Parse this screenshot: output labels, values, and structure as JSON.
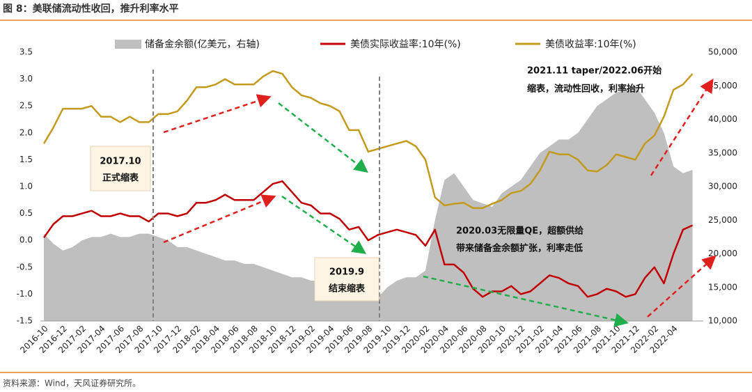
{
  "chart_data": {
    "type": "line",
    "title": "图 8：美联储流动性收回，推升利率水平",
    "source": "资料来源：Wind，天风证券研究所。",
    "categories": [
      "2016-10",
      null,
      "2016-12",
      null,
      "2017-02",
      null,
      "2017-04",
      null,
      "2017-06",
      null,
      "2017-08",
      null,
      "2017-10",
      null,
      "2017-12",
      null,
      "2018-02",
      null,
      "2018-04",
      null,
      "2018-06",
      null,
      "2018-08",
      null,
      "2018-10",
      null,
      "2018-12",
      null,
      "2019-02",
      null,
      "2019-04",
      null,
      "2019-06",
      null,
      "2019-08",
      null,
      "2019-10",
      null,
      "2019-12",
      null,
      "2020-02",
      null,
      "2020-04",
      null,
      "2020-06",
      null,
      "2020-08",
      null,
      "2020-10",
      null,
      "2020-12",
      null,
      "2021-02",
      null,
      "2021-04",
      null,
      "2021-06",
      null,
      "2021-08",
      null,
      "2021-10",
      null,
      "2021-12",
      null,
      "2022-02",
      null,
      "2022-04",
      null,
      null
    ],
    "series": [
      {
        "name": "储备金余额(亿美元，右轴)",
        "color": "#bfbfbf",
        "axis": "y2",
        "kind": "area",
        "values": [
          23000,
          21500,
          20500,
          21000,
          22000,
          22500,
          22500,
          23000,
          22500,
          22500,
          23000,
          23000,
          22500,
          22000,
          21000,
          21000,
          20500,
          20000,
          19500,
          19000,
          19000,
          18500,
          18500,
          18000,
          17500,
          17000,
          16500,
          16500,
          16000,
          16000,
          15500,
          15000,
          15000,
          15000,
          14500,
          13500,
          15000,
          16000,
          16500,
          16500,
          17500,
          25000,
          31000,
          32000,
          30000,
          28000,
          27500,
          27000,
          29000,
          30000,
          31000,
          33000,
          35000,
          36000,
          37000,
          37000,
          38000,
          40000,
          42000,
          43000,
          44000,
          44500,
          45000,
          43000,
          41000,
          38000,
          33000,
          32000,
          32500
        ]
      },
      {
        "name": "美债实际收益率:10年(%)",
        "color": "#c00000",
        "kind": "line",
        "values": [
          0.05,
          0.3,
          0.45,
          0.45,
          0.5,
          0.55,
          0.45,
          0.45,
          0.5,
          0.45,
          0.45,
          0.35,
          0.5,
          0.5,
          0.45,
          0.5,
          0.7,
          0.7,
          0.75,
          0.85,
          0.75,
          0.75,
          0.75,
          0.9,
          1.05,
          1.1,
          0.9,
          0.7,
          0.65,
          0.5,
          0.5,
          0.4,
          0.2,
          0.25,
          0.0,
          0.1,
          0.15,
          0.2,
          0.15,
          0.1,
          -0.1,
          0.2,
          -0.45,
          -0.45,
          -0.6,
          -0.9,
          -1.05,
          -0.95,
          -0.95,
          -0.85,
          -1.0,
          -0.95,
          -0.8,
          -0.65,
          -0.7,
          -0.8,
          -0.85,
          -1.05,
          -1.0,
          -0.9,
          -0.95,
          -1.05,
          -1.0,
          -0.7,
          -0.5,
          -0.8,
          -0.25,
          0.2,
          0.28
        ]
      },
      {
        "name": "美债收益率:10年(%)",
        "color": "#c49a1c",
        "kind": "line",
        "values": [
          1.8,
          2.1,
          2.45,
          2.45,
          2.45,
          2.5,
          2.3,
          2.3,
          2.2,
          2.3,
          2.2,
          2.2,
          2.35,
          2.35,
          2.4,
          2.6,
          2.85,
          2.85,
          2.9,
          3.0,
          2.9,
          2.9,
          2.9,
          3.05,
          3.15,
          3.1,
          2.85,
          2.7,
          2.65,
          2.55,
          2.5,
          2.4,
          2.05,
          2.05,
          1.65,
          1.7,
          1.75,
          1.8,
          1.85,
          1.75,
          1.5,
          0.8,
          0.65,
          0.68,
          0.7,
          0.6,
          0.6,
          0.68,
          0.75,
          0.88,
          0.92,
          1.05,
          1.3,
          1.65,
          1.6,
          1.6,
          1.5,
          1.3,
          1.28,
          1.4,
          1.6,
          1.55,
          1.5,
          1.8,
          1.95,
          2.3,
          2.8,
          2.9,
          3.1
        ]
      }
    ],
    "ylim": [
      -1.5,
      3.5
    ],
    "yticks": [
      -1.5,
      {
        "value": -1.0,
        "label": "-1.0"
      },
      -0.5,
      {
        "value": 0.0,
        "label": "0.0"
      },
      0.5,
      {
        "value": 1.0,
        "label": "1.0"
      },
      1.5,
      {
        "value": 2.0,
        "label": "2.0"
      },
      2.5,
      {
        "value": 3.0,
        "label": "3.0"
      },
      3.5
    ],
    "y2lim": [
      10000,
      50000
    ],
    "y2ticks": [
      {
        "value": 10000,
        "label": "10,000"
      },
      {
        "value": 15000,
        "label": "15,000"
      },
      {
        "value": 20000,
        "label": "20,000"
      },
      {
        "value": 25000,
        "label": "25,000"
      },
      {
        "value": 30000,
        "label": "30,000"
      },
      {
        "value": 35000,
        "label": "35,000"
      },
      {
        "value": 40000,
        "label": "40,000"
      },
      {
        "value": 45000,
        "label": "45,000"
      },
      {
        "value": 50000,
        "label": "50,000"
      }
    ],
    "annotations": [
      [
        "2017.10",
        "正式缩表"
      ],
      [
        "2019.9",
        "结束缩表"
      ],
      [
        "2020.03无限量QE，超额供给",
        "带来储备金余额扩张，利率走低"
      ],
      [
        "2021.11 taper/2022.06开始",
        "缩表，流动性回收，利率抬升"
      ]
    ]
  }
}
